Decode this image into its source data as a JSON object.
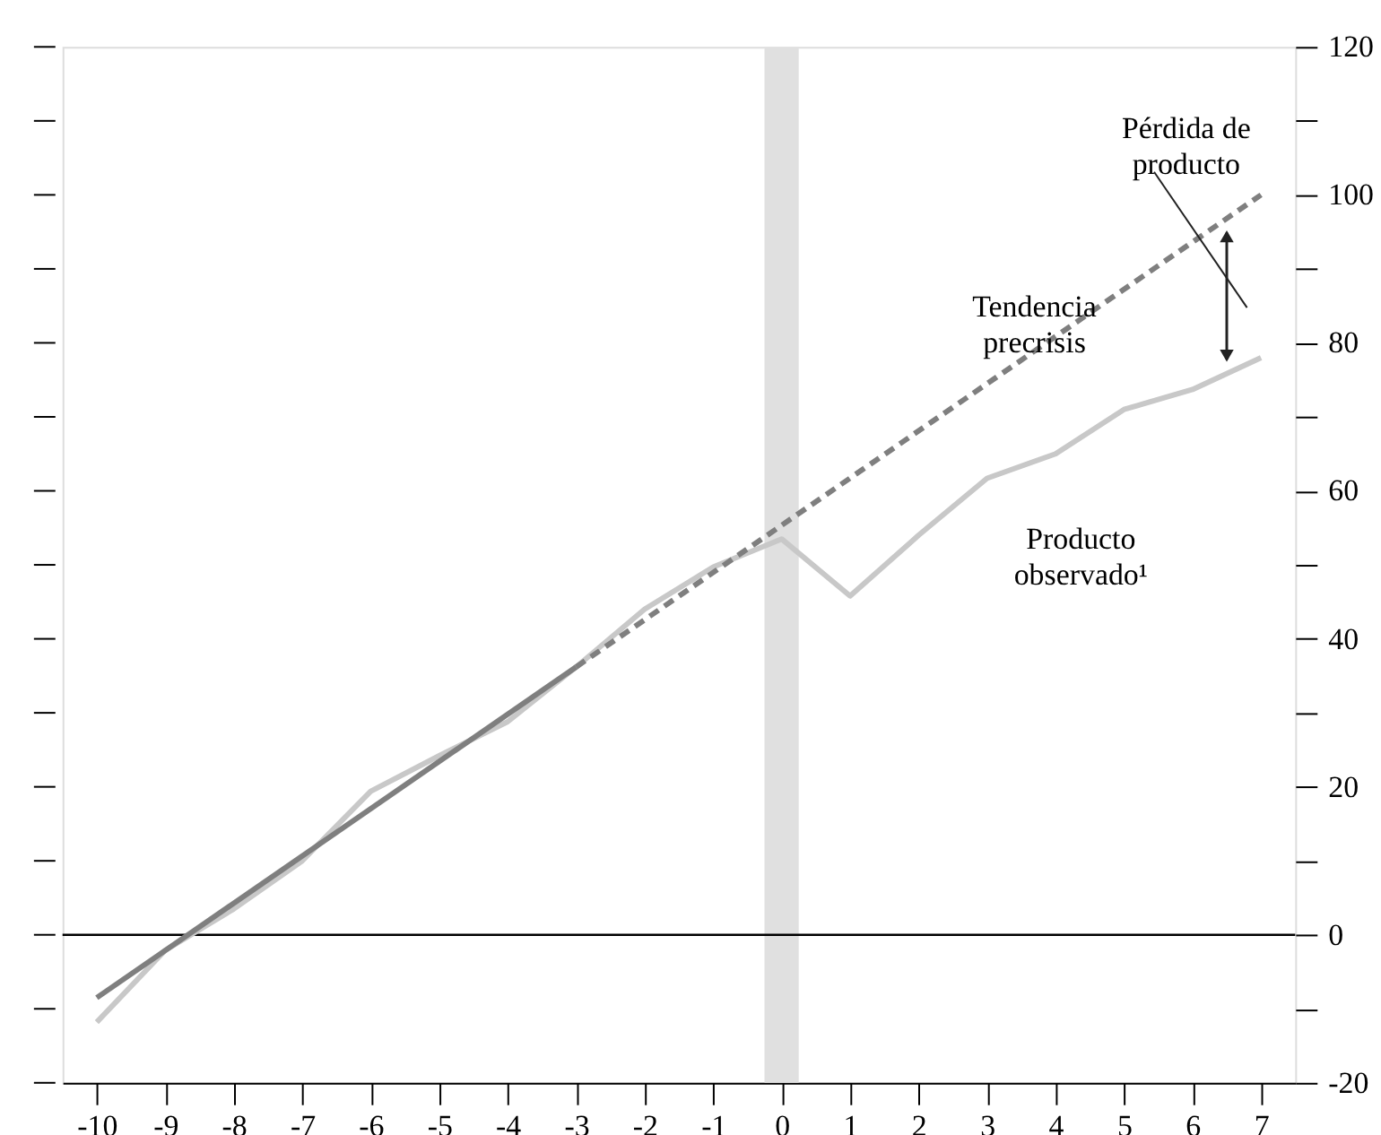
{
  "chart_data": {
    "type": "line",
    "x": [
      -10,
      -9,
      -8,
      -7,
      -6,
      -5,
      -4,
      -3,
      -2,
      -1,
      0,
      1,
      2,
      3,
      4,
      5,
      6,
      7
    ],
    "xlim": [
      -10.5,
      7.5
    ],
    "xticks": [
      -10,
      -9,
      -8,
      -7,
      -6,
      -5,
      -4,
      -3,
      -2,
      -1,
      0,
      1,
      2,
      3,
      4,
      5,
      6,
      7
    ],
    "ylim": [
      -20,
      120
    ],
    "yticks": [
      -20,
      {
        "value": -10,
        "label": null
      },
      0,
      {
        "value": 10,
        "label": null
      },
      20,
      {
        "value": 30,
        "label": null
      },
      40,
      {
        "value": 50,
        "label": null
      },
      60,
      {
        "value": 70,
        "label": null
      },
      80,
      {
        "value": 90,
        "label": null
      },
      100,
      {
        "value": 110,
        "label": null
      },
      120
    ],
    "grid": false,
    "series": [
      {
        "color": "#c8c8c8",
        "line_style": "solid",
        "values": [
          -11.8,
          -2.1,
          3.5,
          10,
          19.4,
          24.2,
          28.8,
          36.2,
          44,
          49.7,
          53.5,
          45.8,
          54,
          61.7,
          65,
          71,
          73.7,
          78
        ]
      },
      {
        "color": "#7f7f7f",
        "line_style": "solid",
        "x": [
          -10,
          -3
        ],
        "values": [
          -8.5,
          36.2
        ]
      },
      {
        "color": "#7f7f7f",
        "line_style": "dashed",
        "x": [
          -3,
          7
        ],
        "values": [
          36.2,
          100
        ]
      }
    ],
    "ref_lines": [
      {
        "axis": "y",
        "value": 0,
        "color": "#000000"
      }
    ],
    "bands": [
      {
        "axis": "x",
        "from": -0.25,
        "to": 0.25,
        "color": "#e0e0e0"
      }
    ],
    "annotations": [
      "Pérdida de producto",
      "Tendencia precrisis",
      "Producto observado¹"
    ]
  }
}
